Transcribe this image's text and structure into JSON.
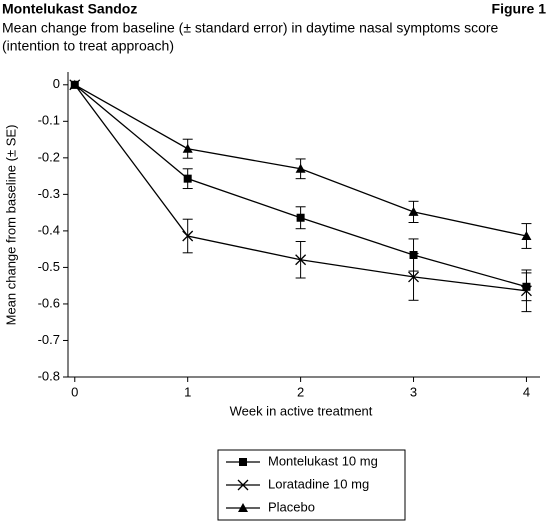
{
  "chart_data": {
    "type": "line",
    "title": "Montelukast Sandoz",
    "figure_label": "Figure 1",
    "subtitle": [
      "Mean change from baseline (± standard error) in daytime nasal symptoms score",
      "(intention to treat approach)"
    ],
    "x_label": "Week in active treatment",
    "y_label": "Mean change from baseline (± SE)",
    "x": [
      0,
      1,
      2,
      3,
      4
    ],
    "xlim": [
      -0.06,
      4.12
    ],
    "xticks": [
      0,
      1,
      2,
      3,
      4
    ],
    "ylim": [
      -0.8,
      0.035
    ],
    "yticks": [
      0,
      -0.1,
      -0.2,
      -0.3,
      -0.4,
      -0.5,
      -0.6,
      -0.7,
      -0.8
    ],
    "series": [
      {
        "name": "Montelukast 10 mg",
        "color": "#000000",
        "marker": "square",
        "values": [
          0,
          -0.257,
          -0.364,
          -0.466,
          -0.553
        ],
        "errors": [
          null,
          0.027,
          0.03,
          0.044,
          0.038
        ]
      },
      {
        "name": "Loratadine 10 mg",
        "color": "#000000",
        "marker": "x",
        "values": [
          0,
          -0.414,
          -0.479,
          -0.526,
          -0.564
        ],
        "errors": [
          null,
          0.046,
          0.05,
          0.064,
          0.057
        ]
      },
      {
        "name": "Placebo",
        "color": "#000000",
        "marker": "triangle",
        "values": [
          0,
          -0.175,
          -0.23,
          -0.348,
          -0.414
        ],
        "errors": [
          null,
          0.026,
          0.027,
          0.029,
          0.034
        ]
      }
    ]
  }
}
